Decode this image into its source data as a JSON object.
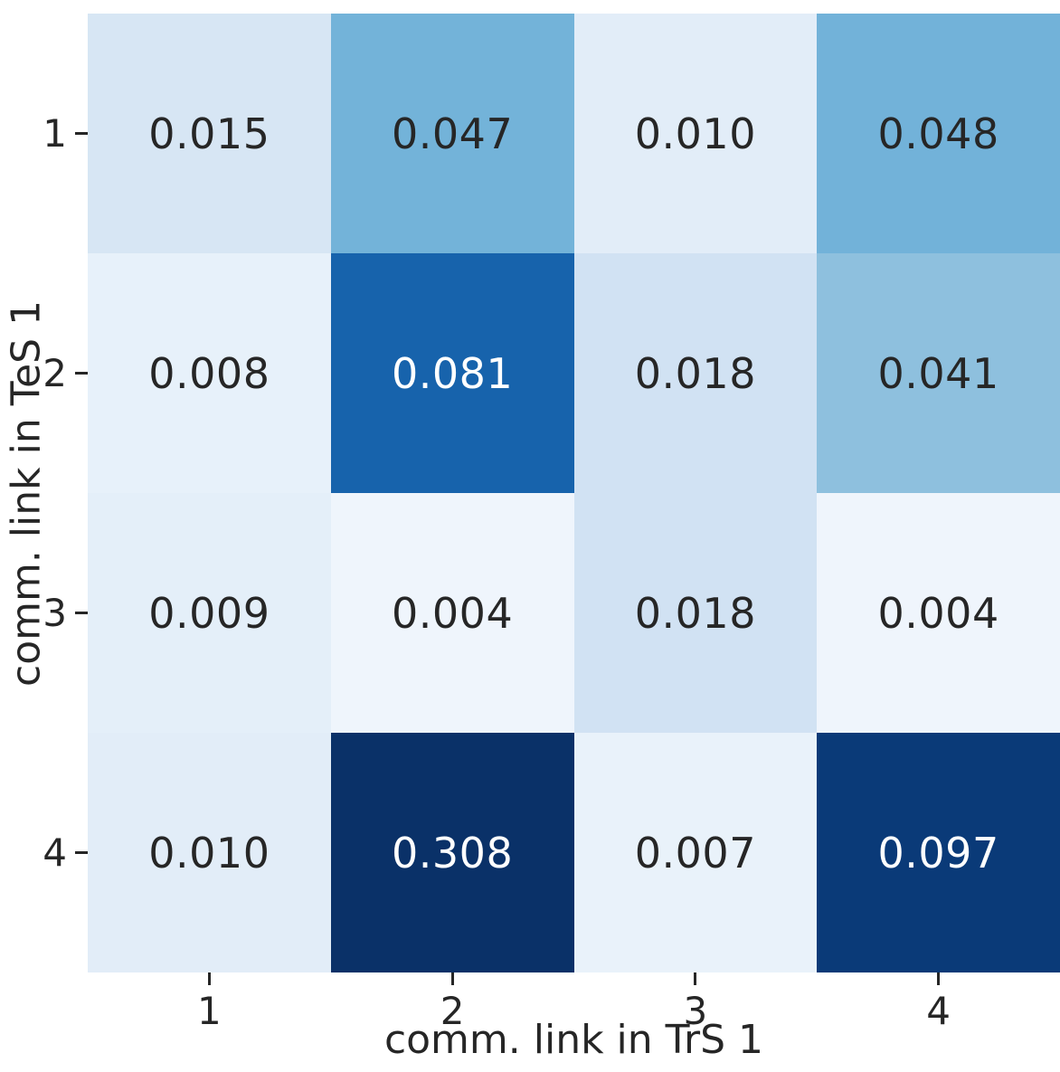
{
  "colors": {
    "background": "#ffffff",
    "tick": "#262626",
    "annot_dark": "#262626",
    "annot_light": "#ffffff"
  },
  "chart_data": {
    "type": "heatmap",
    "title": "",
    "xlabel": "comm. link in TrS 1",
    "ylabel": "comm. link in TeS 1",
    "x_tick_labels": [
      "1",
      "2",
      "3",
      "4"
    ],
    "y_tick_labels": [
      "1",
      "2",
      "3",
      "4"
    ],
    "grid": false,
    "legend_position": "none",
    "colormap": "Blues",
    "color_scale": {
      "vmin": 0.0,
      "vmax": 0.1
    },
    "values": [
      [
        0.015,
        0.047,
        0.01,
        0.048
      ],
      [
        0.008,
        0.081,
        0.018,
        0.041
      ],
      [
        0.009,
        0.004,
        0.018,
        0.004
      ],
      [
        0.01,
        0.308,
        0.007,
        0.097
      ]
    ],
    "cell_labels": [
      [
        "0.015",
        "0.047",
        "0.010",
        "0.048"
      ],
      [
        "0.008",
        "0.081",
        "0.018",
        "0.041"
      ],
      [
        "0.009",
        "0.004",
        "0.018",
        "0.004"
      ],
      [
        "0.010",
        "0.308",
        "0.007",
        "0.097"
      ]
    ],
    "cell_colors": [
      [
        "#d7e6f4",
        "#73b3d9",
        "#e2edf8",
        "#72b2d9"
      ],
      [
        "#e7f1fa",
        "#1763ac",
        "#d1e2f3",
        "#8ec0de"
      ],
      [
        "#e4eff9",
        "#eff5fc",
        "#d1e2f3",
        "#eff5fc"
      ],
      [
        "#e2edf8",
        "#0a3168",
        "#e9f2fa",
        "#0a3a78"
      ]
    ],
    "cell_text_colors": [
      [
        "#262626",
        "#262626",
        "#262626",
        "#262626"
      ],
      [
        "#262626",
        "#ffffff",
        "#262626",
        "#262626"
      ],
      [
        "#262626",
        "#262626",
        "#262626",
        "#262626"
      ],
      [
        "#262626",
        "#ffffff",
        "#262626",
        "#ffffff"
      ]
    ]
  }
}
